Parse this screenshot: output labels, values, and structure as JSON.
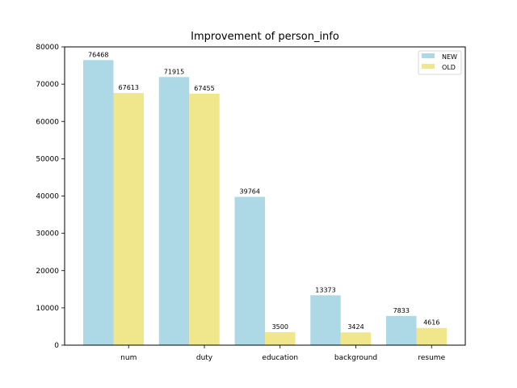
{
  "chart_data": {
    "type": "bar",
    "title": "Improvement of person_info",
    "xlabel": "",
    "ylabel": "",
    "categories": [
      "num",
      "duty",
      "education",
      "background",
      "resume"
    ],
    "series": [
      {
        "name": "NEW",
        "values": [
          76468,
          71915,
          39764,
          13373,
          7833
        ],
        "color": "#add8e6"
      },
      {
        "name": "OLD",
        "values": [
          67613,
          67455,
          3500,
          3424,
          4616
        ],
        "color": "#f0e68c"
      }
    ],
    "ylim": [
      0,
      80000
    ],
    "yticks": [
      0,
      10000,
      20000,
      30000,
      40000,
      50000,
      60000,
      70000,
      80000
    ],
    "grid": false,
    "legend_position": "top-right"
  }
}
